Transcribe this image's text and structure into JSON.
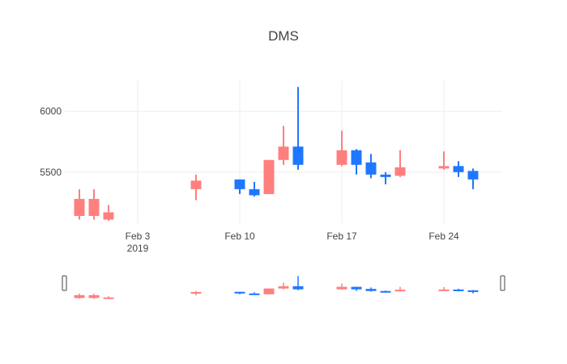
{
  "chart_data": {
    "type": "candlestick",
    "title": "DMS",
    "xlabel": "",
    "ylabel": "",
    "x_tick_labels": [
      "Feb 3",
      "Feb 10",
      "Feb 17",
      "Feb 24"
    ],
    "x_tick_dates": [
      "2019-02-03",
      "2019-02-10",
      "2019-02-17",
      "2019-02-24"
    ],
    "x_year_label": "2019",
    "y_tick_labels": [
      "5500",
      "6000"
    ],
    "y_tick_values": [
      5500,
      6000
    ],
    "ylim": [
      5080,
      6250
    ],
    "xlim": [
      "2019-01-29",
      "2019-02-28"
    ],
    "grid": true,
    "range_slider": true,
    "increasing_color": "#1f77ff",
    "decreasing_color": "#ff7f7f",
    "series": [
      {
        "date": "2019-01-30",
        "open": 5280,
        "high": 5360,
        "low": 5110,
        "close": 5140
      },
      {
        "date": "2019-01-31",
        "open": 5280,
        "high": 5360,
        "low": 5110,
        "close": 5140
      },
      {
        "date": "2019-02-01",
        "open": 5170,
        "high": 5230,
        "low": 5100,
        "close": 5110
      },
      {
        "date": "2019-02-07",
        "open": 5430,
        "high": 5480,
        "low": 5270,
        "close": 5360
      },
      {
        "date": "2019-02-10",
        "open": 5360,
        "high": 5440,
        "low": 5320,
        "close": 5440
      },
      {
        "date": "2019-02-11",
        "open": 5310,
        "high": 5420,
        "low": 5300,
        "close": 5360
      },
      {
        "date": "2019-02-12",
        "open": 5600,
        "high": 5600,
        "low": 5320,
        "close": 5320
      },
      {
        "date": "2019-02-13",
        "open": 5710,
        "high": 5880,
        "low": 5560,
        "close": 5600
      },
      {
        "date": "2019-02-14",
        "open": 5560,
        "high": 6200,
        "low": 5520,
        "close": 5710
      },
      {
        "date": "2019-02-17",
        "open": 5680,
        "high": 5840,
        "low": 5550,
        "close": 5560
      },
      {
        "date": "2019-02-18",
        "open": 5560,
        "high": 5690,
        "low": 5480,
        "close": 5680
      },
      {
        "date": "2019-02-19",
        "open": 5480,
        "high": 5650,
        "low": 5450,
        "close": 5580
      },
      {
        "date": "2019-02-20",
        "open": 5460,
        "high": 5500,
        "low": 5400,
        "close": 5480
      },
      {
        "date": "2019-02-21",
        "open": 5540,
        "high": 5680,
        "low": 5460,
        "close": 5470
      },
      {
        "date": "2019-02-24",
        "open": 5550,
        "high": 5670,
        "low": 5520,
        "close": 5530
      },
      {
        "date": "2019-02-25",
        "open": 5500,
        "high": 5590,
        "low": 5460,
        "close": 5550
      },
      {
        "date": "2019-02-26",
        "open": 5440,
        "high": 5530,
        "low": 5360,
        "close": 5510
      }
    ]
  }
}
